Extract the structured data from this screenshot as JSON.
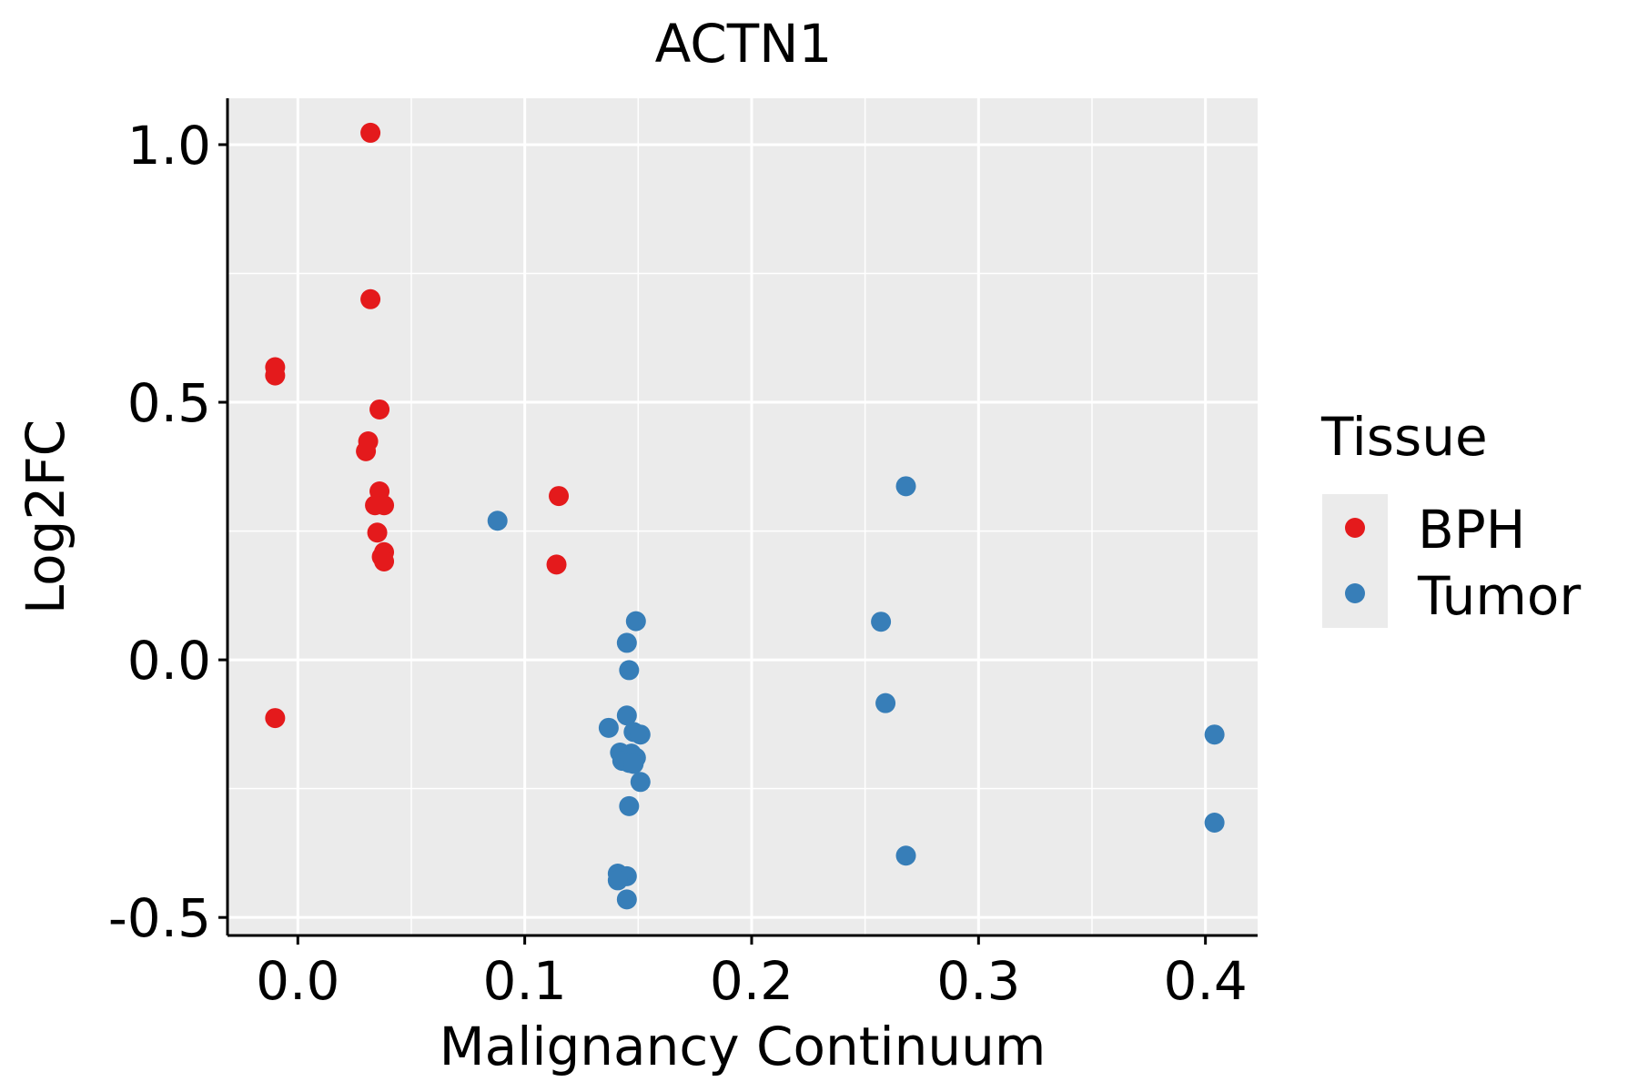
{
  "chart_data": {
    "type": "scatter",
    "title": "ACTN1",
    "xlabel": "Malignancy Continuum",
    "ylabel": "Log2FC",
    "xlim": [
      -0.031,
      0.423
    ],
    "ylim": [
      -0.535,
      1.09
    ],
    "x_ticks": [
      0.0,
      0.1,
      0.2,
      0.3,
      0.4
    ],
    "x_tick_labels": [
      "0.0",
      "0.1",
      "0.2",
      "0.3",
      "0.4"
    ],
    "y_ticks": [
      -0.5,
      0.0,
      0.5,
      1.0
    ],
    "y_tick_labels": [
      "-0.5",
      "0.0",
      "0.5",
      "1.0"
    ],
    "grid": true,
    "panel_background": "#EBEBEB",
    "legend": {
      "title": "Tissue",
      "position": "right",
      "entries": [
        "BPH",
        "Tumor"
      ]
    },
    "series": [
      {
        "name": "BPH",
        "color": "#E41A1C",
        "points": [
          [
            -0.01,
            0.568
          ],
          [
            -0.01,
            0.552
          ],
          [
            -0.01,
            -0.113
          ],
          [
            0.032,
            1.023
          ],
          [
            0.032,
            0.7
          ],
          [
            0.031,
            0.424
          ],
          [
            0.03,
            0.405
          ],
          [
            0.036,
            0.486
          ],
          [
            0.036,
            0.327
          ],
          [
            0.034,
            0.3
          ],
          [
            0.038,
            0.3
          ],
          [
            0.035,
            0.247
          ],
          [
            0.038,
            0.209
          ],
          [
            0.037,
            0.2
          ],
          [
            0.038,
            0.191
          ],
          [
            0.115,
            0.318
          ],
          [
            0.114,
            0.185
          ]
        ]
      },
      {
        "name": "Tumor",
        "color": "#377EB8",
        "points": [
          [
            0.088,
            0.27
          ],
          [
            0.149,
            0.075
          ],
          [
            0.145,
            0.033
          ],
          [
            0.146,
            -0.02
          ],
          [
            0.145,
            -0.108
          ],
          [
            0.137,
            -0.132
          ],
          [
            0.148,
            -0.14
          ],
          [
            0.151,
            -0.145
          ],
          [
            0.142,
            -0.18
          ],
          [
            0.147,
            -0.182
          ],
          [
            0.149,
            -0.19
          ],
          [
            0.143,
            -0.196
          ],
          [
            0.146,
            -0.2
          ],
          [
            0.148,
            -0.202
          ],
          [
            0.151,
            -0.237
          ],
          [
            0.146,
            -0.284
          ],
          [
            0.141,
            -0.415
          ],
          [
            0.145,
            -0.42
          ],
          [
            0.141,
            -0.428
          ],
          [
            0.145,
            -0.465
          ],
          [
            0.268,
            0.337
          ],
          [
            0.257,
            0.074
          ],
          [
            0.259,
            -0.084
          ],
          [
            0.268,
            -0.38
          ],
          [
            0.404,
            -0.145
          ],
          [
            0.404,
            -0.316
          ]
        ]
      }
    ]
  }
}
